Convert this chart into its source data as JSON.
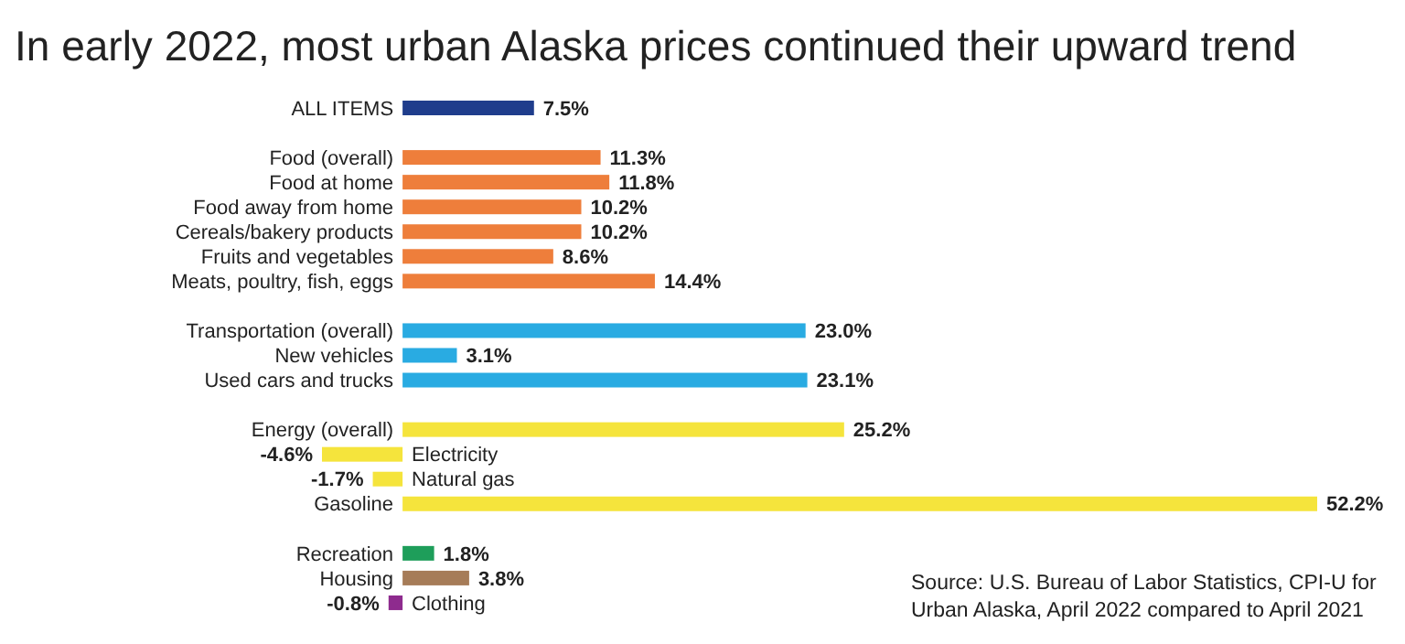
{
  "chart_data": {
    "type": "bar",
    "orientation": "horizontal",
    "title": "In early 2022, most urban Alaska prices continued their upward trend",
    "categories": [
      "ALL ITEMS",
      null,
      "Food (overall)",
      "Food at home",
      "Food away from home",
      "Cereals/bakery products",
      "Fruits and vegetables",
      "Meats, poultry, fish, eggs",
      null,
      "Transportation (overall)",
      "New vehicles",
      "Used cars and trucks",
      null,
      "Energy (overall)",
      "Electricity",
      "Natural gas",
      "Gasoline",
      null,
      "Recreation",
      "Housing",
      "Clothing"
    ],
    "values": [
      7.5,
      null,
      11.3,
      11.8,
      10.2,
      10.2,
      8.6,
      14.4,
      null,
      23.0,
      3.1,
      23.1,
      null,
      25.2,
      -4.6,
      -1.7,
      52.2,
      null,
      1.8,
      3.8,
      -0.8
    ],
    "value_labels": [
      "7.5%",
      null,
      "11.3%",
      "11.8%",
      "10.2%",
      "10.2%",
      "8.6%",
      "14.4%",
      null,
      "23.0%",
      "3.1%",
      "23.1%",
      null,
      "25.2%",
      "-4.6%",
      "-1.7%",
      "52.2%",
      null,
      "1.8%",
      "3.8%",
      "-0.8%"
    ],
    "colors": [
      "#1f3d8c",
      null,
      "#ee7e3b",
      "#ee7e3b",
      "#ee7e3b",
      "#ee7e3b",
      "#ee7e3b",
      "#ee7e3b",
      null,
      "#29abe2",
      "#29abe2",
      "#29abe2",
      null,
      "#f5e43c",
      "#f5e43c",
      "#f5e43c",
      "#f5e43c",
      null,
      "#1e9e5a",
      "#a67c58",
      "#8e2b8e"
    ],
    "annotations": [
      "Source: U.S. Bureau of Labor Statistics, CPI-U for Urban Alaska, April 2022 compared to April 2021"
    ]
  }
}
